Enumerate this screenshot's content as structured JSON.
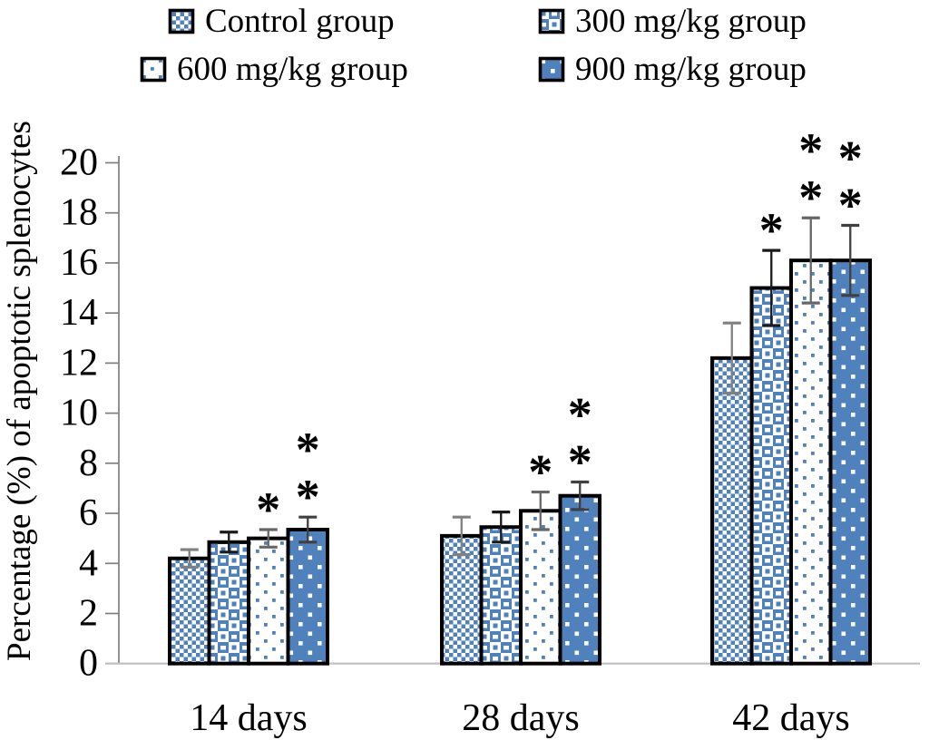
{
  "figure": {
    "y_tick_labels": [
      "0",
      "2",
      "4",
      "6",
      "8",
      "10",
      "12",
      "14",
      "16",
      "18",
      "20"
    ],
    "x_tick_labels": [
      "14 days",
      "28 days",
      "42 days"
    ]
  },
  "legend": {
    "items": [
      {
        "label": "Control group",
        "pattern": "small-checker"
      },
      {
        "label": "300 mg/kg group",
        "pattern": "large-checker"
      },
      {
        "label": "600 mg/kg group",
        "pattern": "white-with-blue-dots"
      },
      {
        "label": "900 mg/kg group",
        "pattern": "blue-with-white-dots"
      }
    ]
  },
  "colors": {
    "bar_blue": "#4f81bd",
    "bar_border": "#000000",
    "axis_gray": "#7f7f7f",
    "baseline_gray": "#bfbfbf",
    "error_bar_colors": [
      "#808080",
      "#1a1a1a",
      "#666666",
      "#404040"
    ],
    "significance_color": "#000000"
  },
  "chart_data": {
    "type": "bar",
    "title": "",
    "categories": [
      "14 days",
      "28 days",
      "42 days"
    ],
    "series": [
      {
        "name": "Control group",
        "values": [
          4.2,
          5.1,
          12.2
        ],
        "errors": [
          0.35,
          0.75,
          1.4
        ],
        "significance": [
          "",
          "",
          ""
        ]
      },
      {
        "name": "300 mg/kg group",
        "values": [
          4.85,
          5.45,
          15.0
        ],
        "errors": [
          0.4,
          0.6,
          1.5
        ],
        "significance": [
          "",
          "",
          "*"
        ]
      },
      {
        "name": "600 mg/kg group",
        "values": [
          5.0,
          6.1,
          16.1
        ],
        "errors": [
          0.35,
          0.75,
          1.7
        ],
        "significance": [
          "*",
          "*",
          "**"
        ]
      },
      {
        "name": "900 mg/kg group",
        "values": [
          5.35,
          6.7,
          16.1
        ],
        "errors": [
          0.5,
          0.55,
          1.4
        ],
        "significance": [
          "**",
          "**",
          "**"
        ]
      }
    ],
    "xlabel": "",
    "ylabel": "Percentage (%) of apoptotic splenocytes",
    "ylim": [
      0,
      20
    ],
    "ytick_step": 2,
    "grid": false,
    "legend_position": "top"
  }
}
